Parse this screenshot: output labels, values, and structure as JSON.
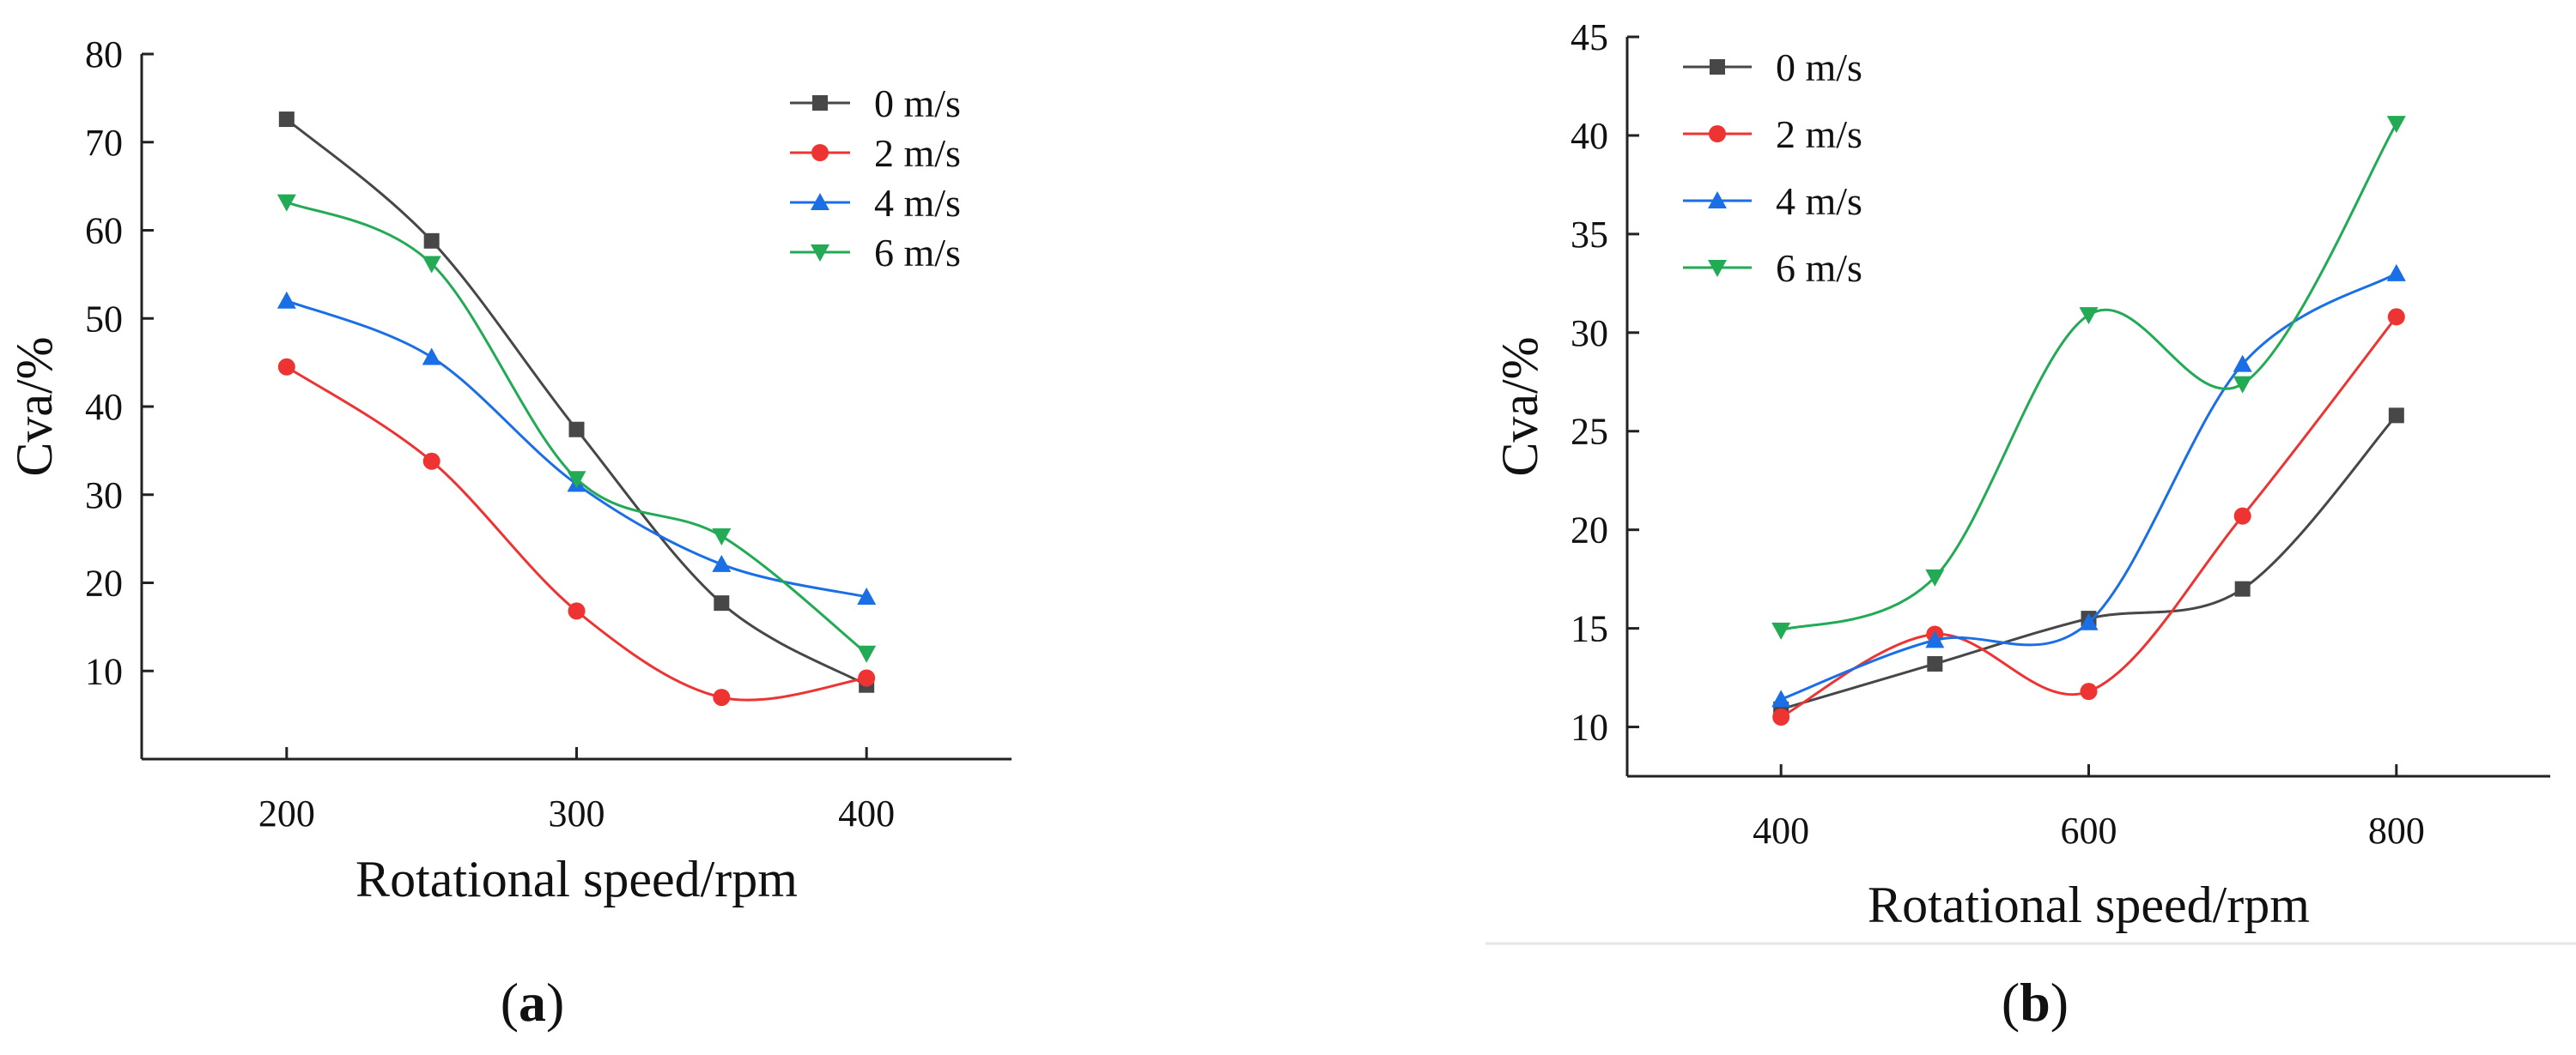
{
  "figure": {
    "panel_labels": [
      "a",
      "b"
    ]
  },
  "chart_data": [
    {
      "type": "line",
      "panel": "a",
      "title": "",
      "xlabel": "Rotational speed/rpm",
      "ylabel": "Cva/%",
      "xlim": [
        150,
        450
      ],
      "ylim": [
        0,
        80
      ],
      "xticks": [
        200,
        300,
        400
      ],
      "yticks": [
        10,
        20,
        30,
        40,
        50,
        60,
        70,
        80
      ],
      "legend_position": "top-right",
      "x": [
        200,
        250,
        300,
        350,
        400
      ],
      "series": [
        {
          "name": "0 m/s",
          "color": "#474747",
          "marker": "square",
          "values": [
            72.6,
            58.8,
            37.4,
            17.7,
            8.4
          ]
        },
        {
          "name": "2 m/s",
          "color": "#ee3333",
          "marker": "circle",
          "values": [
            44.5,
            33.8,
            16.8,
            7.0,
            9.2
          ]
        },
        {
          "name": "4 m/s",
          "color": "#1a6fe6",
          "marker": "triangle-up",
          "values": [
            52.0,
            45.6,
            31.2,
            22.1,
            18.4
          ]
        },
        {
          "name": "6 m/s",
          "color": "#22aa55",
          "marker": "triangle-down",
          "values": [
            63.2,
            56.2,
            31.8,
            25.3,
            12.0
          ]
        }
      ]
    },
    {
      "type": "line",
      "panel": "b",
      "title": "",
      "xlabel": "Rotational speed/rpm",
      "ylabel": "Cva/%",
      "xlim": [
        300,
        900
      ],
      "ylim": [
        7.5,
        45
      ],
      "xticks": [
        400,
        600,
        800
      ],
      "yticks": [
        10,
        15,
        20,
        25,
        30,
        35,
        40,
        45
      ],
      "legend_position": "top-left",
      "x": [
        400,
        500,
        600,
        700,
        800
      ],
      "series": [
        {
          "name": "0 m/s",
          "color": "#474747",
          "marker": "square",
          "values": [
            10.9,
            13.2,
            15.5,
            17.0,
            25.8
          ]
        },
        {
          "name": "2 m/s",
          "color": "#ee3333",
          "marker": "circle",
          "values": [
            10.5,
            14.7,
            11.8,
            20.7,
            30.8
          ]
        },
        {
          "name": "4 m/s",
          "color": "#1a6fe6",
          "marker": "triangle-up",
          "values": [
            11.4,
            14.4,
            15.3,
            28.4,
            33.0
          ]
        },
        {
          "name": "6 m/s",
          "color": "#22aa55",
          "marker": "triangle-down",
          "values": [
            14.9,
            17.6,
            30.9,
            27.4,
            40.6
          ]
        }
      ]
    }
  ]
}
